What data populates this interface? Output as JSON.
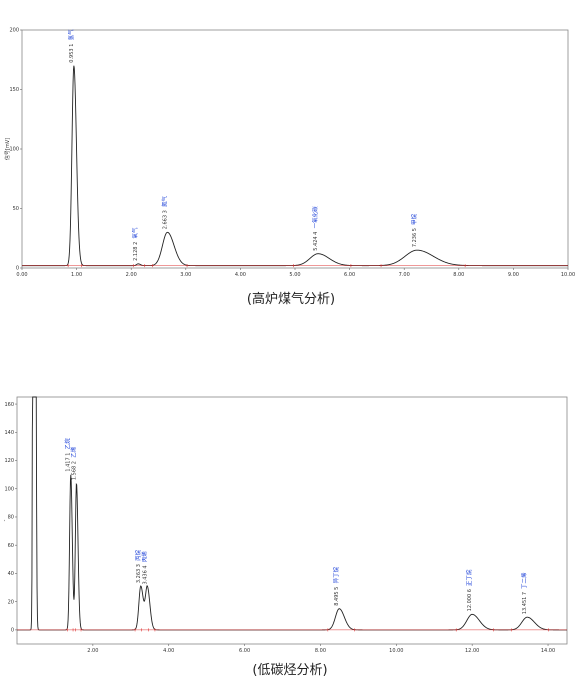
{
  "chart_data": [
    {
      "type": "line",
      "caption": "(高炉煤气分析)",
      "ylabel": "信号[mV]",
      "xlim": [
        0,
        10
      ],
      "ylim": [
        0,
        200
      ],
      "xticks": [
        "0.00",
        "1.00",
        "2.00",
        "3.00",
        "4.00",
        "5.00",
        "6.00",
        "7.00",
        "8.00",
        "9.00",
        "10.00"
      ],
      "yticks": [
        "0",
        "50",
        "100",
        "150",
        "200"
      ],
      "x_tick_values": [
        0,
        1,
        2,
        3,
        4,
        5,
        6,
        7,
        8,
        9,
        10
      ],
      "y_tick_values": [
        0,
        50,
        100,
        150,
        200
      ],
      "peaks": [
        {
          "rt": 0.95,
          "height": 168,
          "sigma": 0.035,
          "label_num": "0.953 1",
          "label_name": "氢气"
        },
        {
          "rt": 2.128,
          "height": 1.5,
          "sigma": 0.03,
          "label_num": "2.128 2",
          "label_name": "氧气"
        },
        {
          "rt": 2.663,
          "height": 28,
          "sigma": 0.09,
          "label_num": "2.663 3",
          "label_name": "氮气"
        },
        {
          "rt": 5.424,
          "height": 10,
          "sigma": 0.15,
          "label_num": "5.424 4",
          "label_name": "一氧化碳"
        },
        {
          "rt": 7.236,
          "height": 13,
          "sigma": 0.22,
          "label_num": "7.236 5",
          "label_name": "甲烷"
        }
      ],
      "baseline": 2
    },
    {
      "type": "line",
      "caption": "(低碳烃分析)",
      "ylabel": "-",
      "xlim": [
        0,
        14.5
      ],
      "ylim": [
        -10,
        165
      ],
      "xticks": [
        "2.00",
        "4.00",
        "6.00",
        "8.00",
        "10.00",
        "12.00",
        "14.00"
      ],
      "yticks": [
        "0",
        "20",
        "40",
        "60",
        "80",
        "100",
        "120",
        "140",
        "160"
      ],
      "x_tick_values": [
        2,
        4,
        6,
        8,
        10,
        12,
        14
      ],
      "y_tick_values": [
        0,
        20,
        40,
        60,
        80,
        100,
        120,
        140,
        160
      ],
      "peaks": [
        {
          "rt": 0.45,
          "height": 2000,
          "sigma": 0.02,
          "label_num": "",
          "label_name": ""
        },
        {
          "rt": 1.417,
          "height": 110,
          "sigma": 0.03,
          "label_num": "1.417 1",
          "label_name": "乙烷"
        },
        {
          "rt": 1.568,
          "height": 104,
          "sigma": 0.03,
          "label_num": "1.568 2",
          "label_name": "乙烯"
        },
        {
          "rt": 3.263,
          "height": 31,
          "sigma": 0.05,
          "label_num": "3.263 3",
          "label_name": "丙烷"
        },
        {
          "rt": 3.436,
          "height": 30,
          "sigma": 0.05,
          "label_num": "3.436 4",
          "label_name": "丙烯"
        },
        {
          "rt": 8.495,
          "height": 15,
          "sigma": 0.1,
          "label_num": "8.495 5",
          "label_name": "异丁烷"
        },
        {
          "rt": 12.0,
          "height": 11,
          "sigma": 0.14,
          "label_num": "12.000 6",
          "label_name": "正丁烷"
        },
        {
          "rt": 13.451,
          "height": 9,
          "sigma": 0.14,
          "label_num": "13.451 7",
          "label_name": "丁二烯"
        }
      ],
      "baseline": 0
    }
  ]
}
